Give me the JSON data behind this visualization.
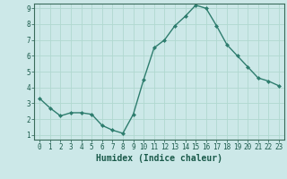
{
  "x": [
    0,
    1,
    2,
    3,
    4,
    5,
    6,
    7,
    8,
    9,
    10,
    11,
    12,
    13,
    14,
    15,
    16,
    17,
    18,
    19,
    20,
    21,
    22,
    23
  ],
  "y": [
    3.3,
    2.7,
    2.2,
    2.4,
    2.4,
    2.3,
    1.6,
    1.3,
    1.1,
    2.3,
    4.5,
    6.5,
    7.0,
    7.9,
    8.5,
    9.2,
    9.0,
    7.9,
    6.7,
    6.0,
    5.3,
    4.6,
    4.4,
    4.1
  ],
  "xlabel": "Humidex (Indice chaleur)",
  "line_color": "#2e7d6e",
  "bg_color": "#cce8e8",
  "grid_color": "#b0d8d0",
  "axes_color": "#3a6a5a",
  "tick_label_color": "#1a5a4a",
  "ylim": [
    0.7,
    9.3
  ],
  "xlim": [
    -0.5,
    23.5
  ],
  "yticks": [
    1,
    2,
    3,
    4,
    5,
    6,
    7,
    8,
    9
  ],
  "xticks": [
    0,
    1,
    2,
    3,
    4,
    5,
    6,
    7,
    8,
    9,
    10,
    11,
    12,
    13,
    14,
    15,
    16,
    17,
    18,
    19,
    20,
    21,
    22,
    23
  ],
  "marker": "D",
  "markersize": 2,
  "linewidth": 1.0,
  "xlabel_fontsize": 7,
  "tick_fontsize": 5.5
}
